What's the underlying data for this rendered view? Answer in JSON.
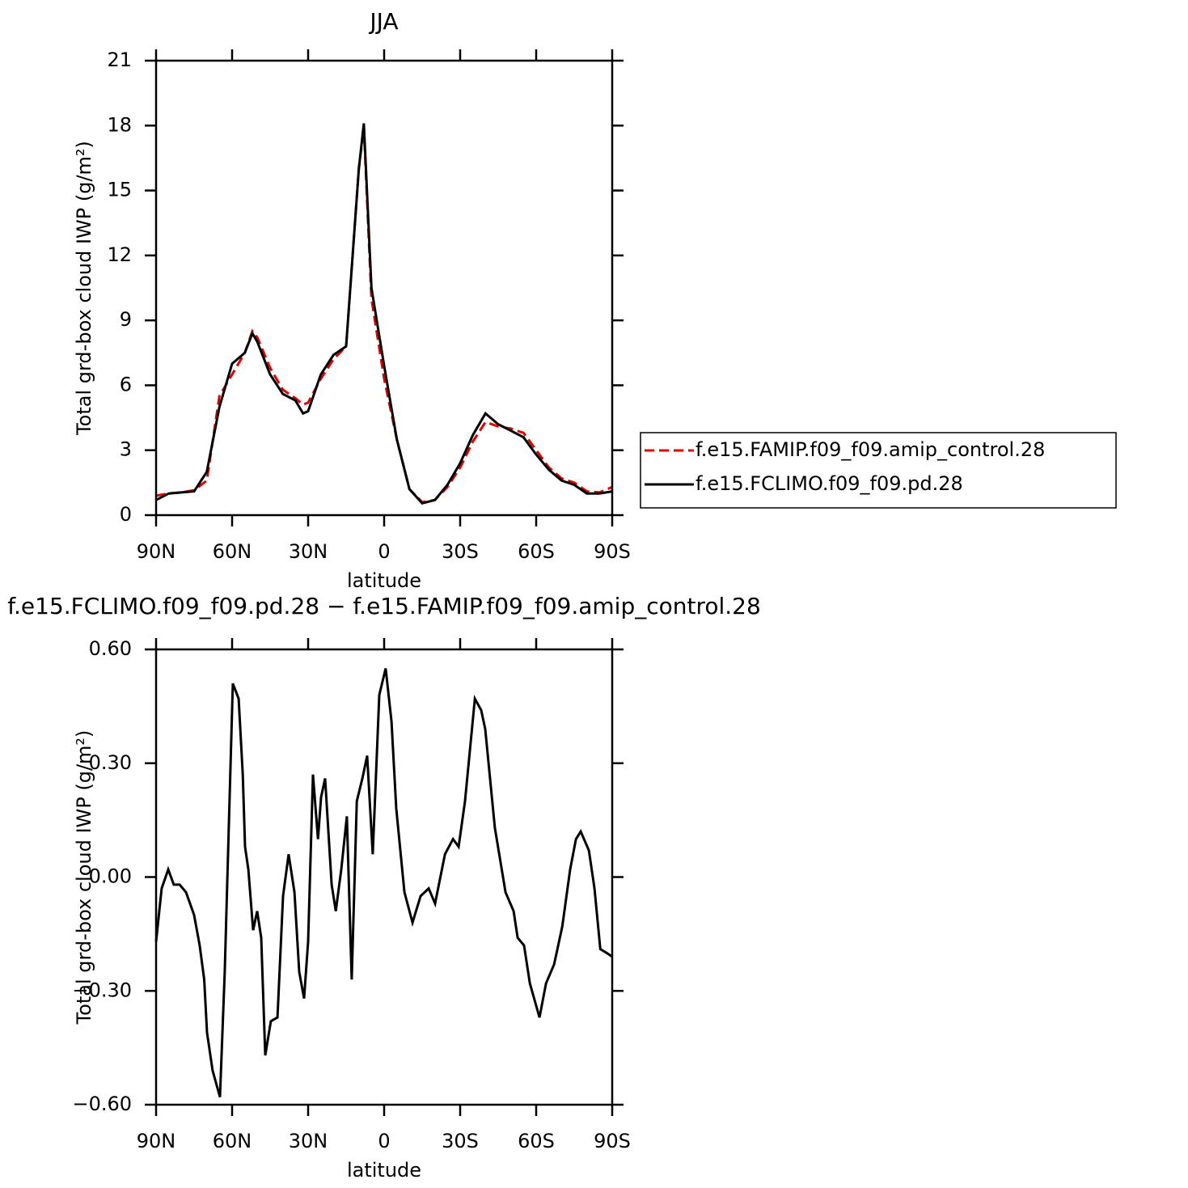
{
  "chart_data": [
    {
      "type": "line",
      "title": "JJA",
      "xlabel": "latitude",
      "ylabel": "Total grd-box cloud IWP (g/m²)",
      "x": [
        90,
        85,
        80,
        75,
        70,
        65,
        60,
        55,
        52,
        50,
        45,
        40,
        35,
        32,
        30,
        25,
        20,
        15,
        10,
        8,
        5,
        0,
        -5,
        -10,
        -15,
        -20,
        -25,
        -30,
        -35,
        -40,
        -45,
        -50,
        -55,
        -60,
        -65,
        -70,
        -75,
        -80,
        -85,
        -90
      ],
      "series": [
        {
          "name": "f.e15.FAMIP.f09_f09.amip_control.28",
          "color": "#e00000",
          "dash": true,
          "values": [
            0.9,
            1.0,
            1.05,
            1.15,
            1.6,
            5.5,
            6.5,
            7.5,
            8.5,
            8.2,
            6.8,
            5.8,
            5.4,
            5.1,
            5.2,
            6.3,
            7.2,
            7.8,
            16,
            17.9,
            10,
            6.3,
            3.5,
            1.2,
            0.6,
            0.7,
            1.3,
            2.2,
            3.4,
            4.3,
            4.1,
            4.0,
            3.8,
            3.0,
            2.2,
            1.7,
            1.5,
            1.1,
            1.05,
            1.3
          ]
        },
        {
          "name": "f.e15.FCLIMO.f09_f09.pd.28",
          "color": "#000000",
          "dash": false,
          "values": [
            0.7,
            1.0,
            1.05,
            1.1,
            2.0,
            5.0,
            7.0,
            7.5,
            8.4,
            8.0,
            6.5,
            5.6,
            5.3,
            4.7,
            4.8,
            6.5,
            7.4,
            7.8,
            16,
            18.1,
            10.5,
            6.9,
            3.5,
            1.2,
            0.55,
            0.7,
            1.4,
            2.4,
            3.7,
            4.7,
            4.2,
            3.9,
            3.6,
            2.8,
            2.1,
            1.6,
            1.4,
            1.0,
            1.0,
            1.1
          ]
        }
      ],
      "xlim": [
        90,
        -90
      ],
      "xticks": [
        {
          "value": 90,
          "label": "90N"
        },
        {
          "value": 60,
          "label": "60N"
        },
        {
          "value": 30,
          "label": "30N"
        },
        0,
        {
          "value": -30,
          "label": "30S"
        },
        {
          "value": -60,
          "label": "60S"
        },
        {
          "value": -90,
          "label": "90S"
        }
      ],
      "ylim": [
        0,
        21
      ],
      "yticks": [
        0,
        3,
        6,
        9,
        12,
        15,
        18,
        21
      ],
      "legend": "right"
    },
    {
      "type": "line",
      "title": "f.e15.FCLIMO.f09_f09.pd.28 − f.e15.FAMIP.f09_f09.amip_control.28",
      "xlabel": "latitude",
      "ylabel": "Total grd-box cloud IWP (g/m²)",
      "x": [
        90,
        87.8,
        85.2,
        83,
        80.7,
        78.2,
        75,
        72.8,
        71,
        69.9,
        67.7,
        64.8,
        62.9,
        59.7,
        57.4,
        55.8,
        54.9,
        53.6,
        51.7,
        50.1,
        48.5,
        46.9,
        44.7,
        42.1,
        39.9,
        37.7,
        35.4,
        33.5,
        31.6,
        30,
        28.1,
        26.1,
        24.9,
        23.3,
        20.7,
        19.1,
        16.9,
        14.7,
        12.8,
        10.8,
        8.6,
        6.7,
        4.5,
        1.9,
        -0.6,
        -2.9,
        -4.8,
        -8,
        -11.2,
        -14.4,
        -17.6,
        -20.1,
        -24,
        -27.2,
        -29.4,
        -31.9,
        -35.8,
        -38.3,
        -39.9,
        -43.7,
        -47.9,
        -51.1,
        -52.7,
        -55.2,
        -57.5,
        -61.3,
        -63.9,
        -67.1,
        -70.3,
        -73.4,
        -75.7,
        -77.6,
        -80.8,
        -83,
        -85.3,
        -87.8,
        -90
      ],
      "series": [
        {
          "name": "f.e15.FCLIMO.f09_f09.pd.28 − f.e15.FAMIP.f09_f09.amip_control.28",
          "color": "#000000",
          "dash": false,
          "values": [
            -0.17,
            -0.03,
            0.02,
            -0.02,
            -0.02,
            -0.04,
            -0.1,
            -0.18,
            -0.27,
            -0.41,
            -0.51,
            -0.58,
            -0.25,
            0.51,
            0.47,
            0.27,
            0.08,
            0.02,
            -0.14,
            -0.09,
            -0.16,
            -0.47,
            -0.38,
            -0.37,
            -0.05,
            0.06,
            -0.04,
            -0.25,
            -0.32,
            -0.17,
            0.27,
            0.1,
            0.21,
            0.26,
            -0.02,
            -0.09,
            0.02,
            0.16,
            -0.27,
            0.2,
            0.26,
            0.32,
            0.06,
            0.48,
            0.55,
            0.41,
            0.18,
            -0.04,
            -0.12,
            -0.05,
            -0.03,
            -0.07,
            0.06,
            0.1,
            0.08,
            0.2,
            0.47,
            0.44,
            0.39,
            0.13,
            -0.04,
            -0.09,
            -0.16,
            -0.18,
            -0.28,
            -0.37,
            -0.28,
            -0.23,
            -0.13,
            0.02,
            0.1,
            0.12,
            0.07,
            -0.03,
            -0.19,
            -0.2,
            -0.21
          ]
        }
      ],
      "xlim": [
        90,
        -90
      ],
      "xticks": [
        {
          "value": 90,
          "label": "90N"
        },
        {
          "value": 60,
          "label": "60N"
        },
        {
          "value": 30,
          "label": "30N"
        },
        0,
        {
          "value": -30,
          "label": "30S"
        },
        {
          "value": -60,
          "label": "60S"
        },
        {
          "value": -90,
          "label": "90S"
        }
      ],
      "ylim": [
        -0.6,
        0.6
      ],
      "yticks": [
        {
          "value": -0.6,
          "label": "−0.60"
        },
        {
          "value": -0.3,
          "label": "−0.30"
        },
        {
          "value": 0,
          "label": "0.00"
        },
        {
          "value": 0.3,
          "label": "0.30"
        },
        {
          "value": 0.6,
          "label": "0.60"
        }
      ]
    }
  ]
}
